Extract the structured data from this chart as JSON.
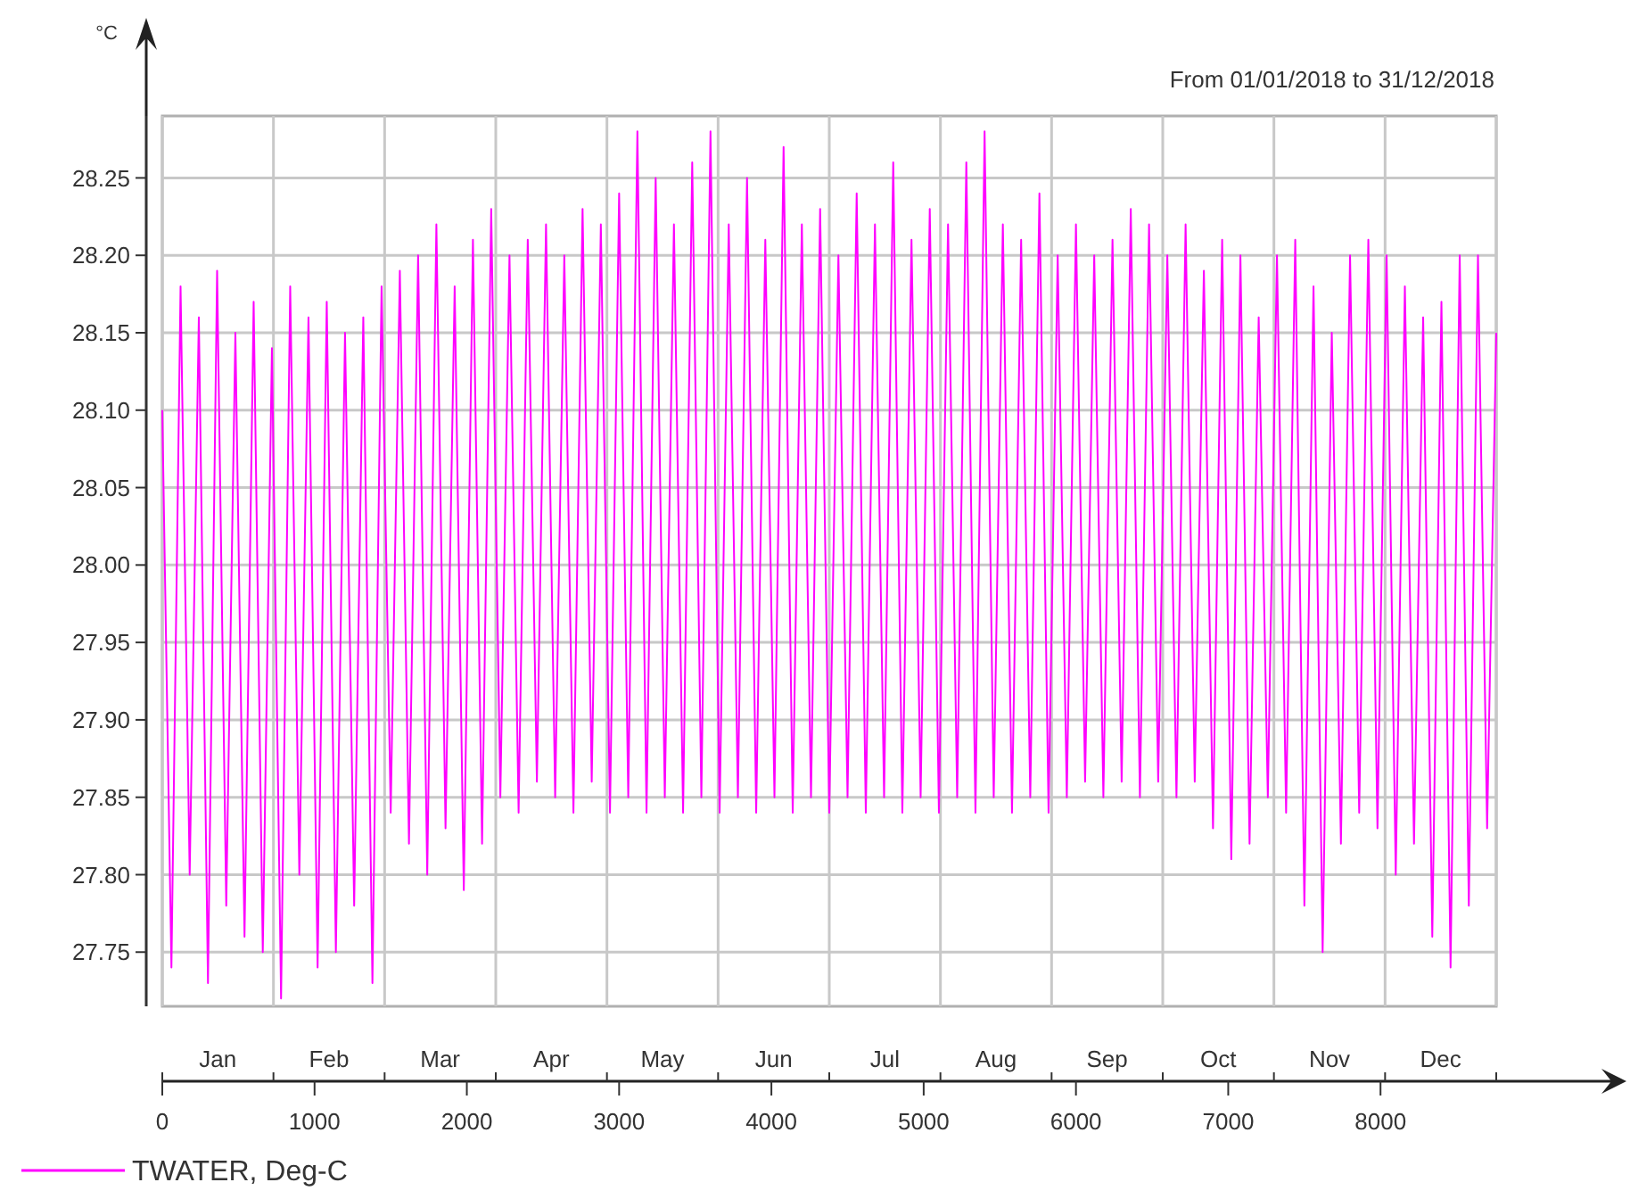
{
  "chart_data": {
    "type": "line",
    "subtitle": "From 01/01/2018 to 31/12/2018",
    "ylabel": "°C",
    "x": [
      0,
      60,
      120,
      180,
      240,
      300,
      360,
      420,
      480,
      540,
      600,
      660,
      720,
      780,
      840,
      900,
      960,
      1020,
      1080,
      1140,
      1200,
      1260,
      1320,
      1380,
      1440,
      1500,
      1560,
      1620,
      1680,
      1740,
      1800,
      1860,
      1920,
      1980,
      2040,
      2100,
      2160,
      2220,
      2280,
      2340,
      2400,
      2460,
      2520,
      2580,
      2640,
      2700,
      2760,
      2820,
      2880,
      2940,
      3000,
      3060,
      3120,
      3180,
      3240,
      3300,
      3360,
      3420,
      3480,
      3540,
      3600,
      3660,
      3720,
      3780,
      3840,
      3900,
      3960,
      4020,
      4080,
      4140,
      4200,
      4260,
      4320,
      4380,
      4440,
      4500,
      4560,
      4620,
      4680,
      4740,
      4800,
      4860,
      4920,
      4980,
      5040,
      5100,
      5160,
      5220,
      5280,
      5340,
      5400,
      5460,
      5520,
      5580,
      5640,
      5700,
      5760,
      5820,
      5880,
      5940,
      6000,
      6060,
      6120,
      6180,
      6240,
      6300,
      6360,
      6420,
      6480,
      6540,
      6600,
      6660,
      6720,
      6780,
      6840,
      6900,
      6960,
      7020,
      7080,
      7140,
      7200,
      7260,
      7320,
      7380,
      7440,
      7500,
      7560,
      7620,
      7680,
      7740,
      7800,
      7860,
      7920,
      7980,
      8040,
      8100,
      8160,
      8220,
      8280,
      8340,
      8400,
      8460,
      8520,
      8580,
      8640,
      8700,
      8760
    ],
    "series": [
      {
        "name": "TWATER, Deg-C",
        "color": "#ff00ff",
        "values": [
          28.1,
          27.74,
          28.18,
          27.8,
          28.16,
          27.73,
          28.19,
          27.78,
          28.15,
          27.76,
          28.17,
          27.75,
          28.14,
          27.72,
          28.18,
          27.8,
          28.16,
          27.74,
          28.17,
          27.75,
          28.15,
          27.78,
          28.16,
          27.73,
          28.18,
          27.84,
          28.19,
          27.82,
          28.2,
          27.8,
          28.22,
          27.83,
          28.18,
          27.79,
          28.21,
          27.82,
          28.23,
          27.85,
          28.2,
          27.84,
          28.21,
          27.86,
          28.22,
          27.85,
          28.2,
          27.84,
          28.23,
          27.86,
          28.22,
          27.84,
          28.24,
          27.85,
          28.28,
          27.84,
          28.25,
          27.85,
          28.22,
          27.84,
          28.26,
          27.85,
          28.28,
          27.84,
          28.22,
          27.85,
          28.25,
          27.84,
          28.21,
          27.85,
          28.27,
          27.84,
          28.22,
          27.85,
          28.23,
          27.84,
          28.2,
          27.85,
          28.24,
          27.84,
          28.22,
          27.85,
          28.26,
          27.84,
          28.21,
          27.85,
          28.23,
          27.84,
          28.22,
          27.85,
          28.26,
          27.84,
          28.28,
          27.85,
          28.22,
          27.84,
          28.21,
          27.85,
          28.24,
          27.84,
          28.2,
          27.85,
          28.22,
          27.86,
          28.2,
          27.85,
          28.21,
          27.86,
          28.23,
          27.85,
          28.22,
          27.86,
          28.2,
          27.85,
          28.22,
          27.86,
          28.19,
          27.83,
          28.21,
          27.81,
          28.2,
          27.82,
          28.16,
          27.85,
          28.2,
          27.84,
          28.21,
          27.78,
          28.18,
          27.75,
          28.15,
          27.82,
          28.2,
          27.84,
          28.21,
          27.83,
          28.2,
          27.8,
          28.18,
          27.82,
          28.16,
          27.76,
          28.17,
          27.74,
          28.2,
          27.78,
          28.2,
          27.83,
          28.15
        ]
      }
    ],
    "xlim": [
      0,
      8760
    ],
    "xticks": [
      0,
      1000,
      2000,
      3000,
      4000,
      5000,
      6000,
      7000,
      8000
    ],
    "annotations": [
      "Jan",
      "Feb",
      "Mar",
      "Apr",
      "May",
      "Jun",
      "Jul",
      "Aug",
      "Sep",
      "Oct",
      "Nov",
      "Dec"
    ],
    "ylim": [
      27.715,
      28.29
    ],
    "yticks": [
      {
        "value": 27.75,
        "label": "27.75"
      },
      {
        "value": 27.8,
        "label": "27.80"
      },
      {
        "value": 27.85,
        "label": "27.85"
      },
      {
        "value": 27.9,
        "label": "27.90"
      },
      {
        "value": 27.95,
        "label": "27.95"
      },
      {
        "value": 28.0,
        "label": "28.00"
      },
      {
        "value": 28.05,
        "label": "28.05"
      },
      {
        "value": 28.1,
        "label": "28.10"
      },
      {
        "value": 28.15,
        "label": "28.15"
      },
      {
        "value": 28.2,
        "label": "28.20"
      },
      {
        "value": 28.25,
        "label": "28.25"
      }
    ],
    "grid": true,
    "legend": "bottom left",
    "line_style": "solid"
  }
}
